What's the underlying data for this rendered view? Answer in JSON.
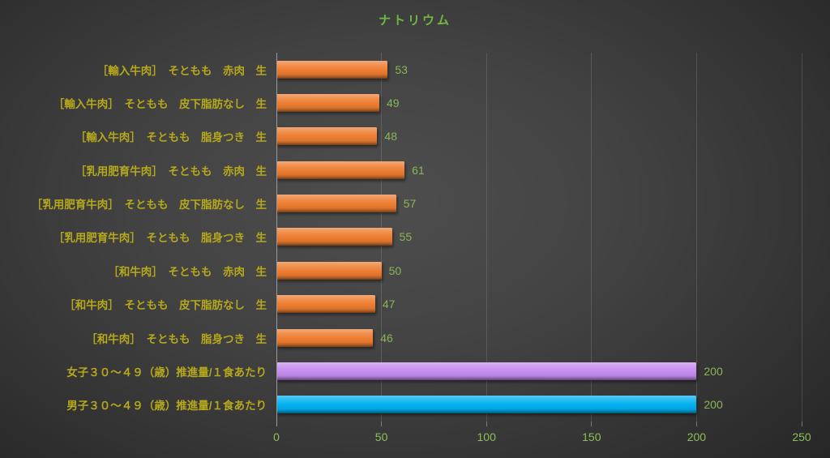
{
  "colors": {
    "title_green": "#70B845",
    "value_label_green": "#89B656",
    "tick_label_green": "#8FBE59",
    "category_yellow": "#B6A81C",
    "bar_orange": "#ED7D31",
    "bar_purple": "#C58CEF",
    "bar_blue": "#00B0F0",
    "gridline_gray": "#5A5A5A",
    "axis_gray": "#9A9A9A",
    "background_dark": "#3A3A3A"
  },
  "chart_data": {
    "type": "bar",
    "orientation": "horizontal",
    "title": "ナトリウム",
    "categories": [
      "［輸入牛肉］　そともも　赤肉　生",
      "［輸入牛肉］　そともも　皮下脂肪なし　生",
      "［輸入牛肉］　そともも　脂身つき　生",
      "［乳用肥育牛肉］　そともも　赤肉　生",
      "［乳用肥育牛肉］　そともも　皮下脂肪なし　生",
      "［乳用肥育牛肉］　そともも　脂身つき　生",
      "［和牛肉］　そともも　赤肉　生",
      "［和牛肉］　そともも　皮下脂肪なし　生",
      "［和牛肉］　そともも　脂身つき　生",
      "女子３０～４９（歳）推進量/１食あたり",
      "男子３０～４９（歳）推進量/１食あたり"
    ],
    "values": [
      53,
      49,
      48,
      61,
      57,
      55,
      50,
      47,
      46,
      200,
      200
    ],
    "bar_colors": [
      "#ED7D31",
      "#ED7D31",
      "#ED7D31",
      "#ED7D31",
      "#ED7D31",
      "#ED7D31",
      "#ED7D31",
      "#ED7D31",
      "#ED7D31",
      "#C58CEF",
      "#00B0F0"
    ],
    "value_labels": [
      "53",
      "49",
      "48",
      "61",
      "57",
      "55",
      "50",
      "47",
      "46",
      "200",
      "200"
    ],
    "xlabel": "",
    "ylabel": "",
    "xlim": [
      0,
      250
    ],
    "xticks": [
      0,
      50,
      100,
      150,
      200,
      250
    ],
    "grid": true,
    "legend": "none"
  }
}
